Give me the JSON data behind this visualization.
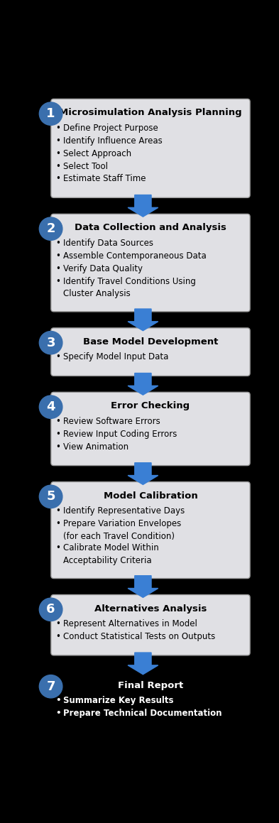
{
  "background_color": "#000000",
  "circle_color": "#3a6fad",
  "circle_text_color": "#ffffff",
  "box_bg_color": "#e0e0e4",
  "box_border_color": "#999999",
  "arrow_color": "#3a7fd4",
  "fig_width": 3.93,
  "fig_height": 11.59,
  "steps": [
    {
      "number": "1",
      "title": "Microsimulation Analysis Planning",
      "bullets": [
        "Define Project Purpose",
        "Identify Influence Areas",
        "Select Approach",
        "Select Tool",
        "Estimate Staff Time"
      ],
      "bullet_bold": false,
      "bullet_color": "#000000",
      "title_color": "#000000",
      "box": true
    },
    {
      "number": "2",
      "title": "Data Collection and Analysis",
      "bullets": [
        "Identify Data Sources",
        "Assemble Contemporaneous Data",
        "Verify Data Quality",
        "Identify Travel Conditions Using\nCluster Analysis"
      ],
      "bullet_bold": false,
      "bullet_color": "#000000",
      "title_color": "#000000",
      "box": true
    },
    {
      "number": "3",
      "title": "Base Model Development",
      "bullets": [
        "Specify Model Input Data"
      ],
      "bullet_bold": false,
      "bullet_color": "#000000",
      "title_color": "#000000",
      "box": true
    },
    {
      "number": "4",
      "title": "Error Checking",
      "bullets": [
        "Review Software Errors",
        "Review Input Coding Errors",
        "View Animation"
      ],
      "bullet_bold": false,
      "bullet_color": "#000000",
      "title_color": "#000000",
      "box": true
    },
    {
      "number": "5",
      "title": "Model Calibration",
      "bullets": [
        "Identify Representative Days",
        "Prepare Variation Envelopes\n(for each Travel Condition)",
        "Calibrate Model Within\nAcceptability Criteria"
      ],
      "bullet_bold": false,
      "bullet_color": "#000000",
      "title_color": "#000000",
      "box": true
    },
    {
      "number": "6",
      "title": "Alternatives Analysis",
      "bullets": [
        "Represent Alternatives in Model",
        "Conduct Statistical Tests on Outputs"
      ],
      "bullet_bold": false,
      "bullet_color": "#000000",
      "title_color": "#000000",
      "box": true
    },
    {
      "number": "7",
      "title": "Final Report",
      "bullets": [
        "Summarize Key Results",
        "Prepare Technical Documentation"
      ],
      "bullet_bold": true,
      "bullet_color": "#ffffff",
      "title_color": "#ffffff",
      "box": false
    }
  ]
}
